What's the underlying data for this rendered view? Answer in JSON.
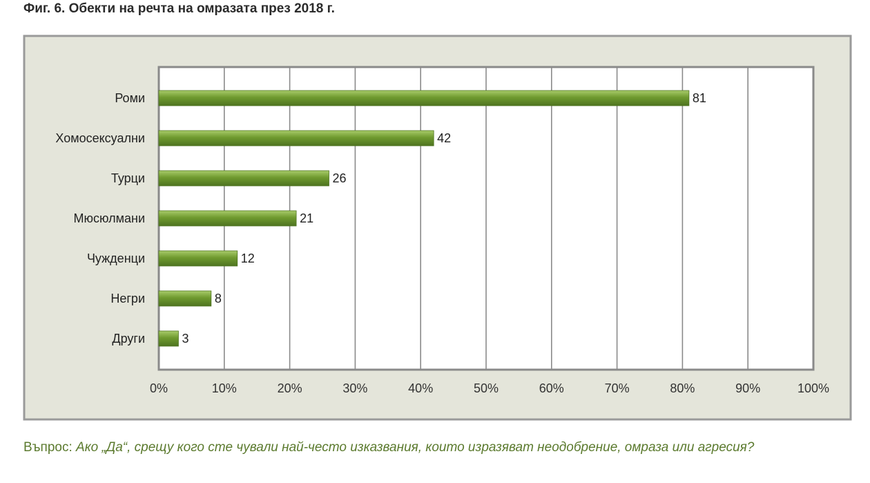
{
  "figure": {
    "title": "Фиг. 6. Обекти на речта на омразата през 2018 г.",
    "question_lead": "Въпрос: ",
    "question_text": "Ако „Да“, срещу кого сте чували най-често изказвания, които изразяват неодобрение, омраза или агресия?"
  },
  "chart_data": {
    "type": "bar",
    "orientation": "horizontal",
    "title": "",
    "xlabel": "",
    "ylabel": "",
    "categories": [
      "Роми",
      "Хомосексуални",
      "Турци",
      "Мюсюлмани",
      "Чужденци",
      "Негри",
      "Други"
    ],
    "values": [
      81,
      42,
      26,
      21,
      12,
      8,
      3
    ],
    "value_labels": [
      "81",
      "42",
      "26",
      "21",
      "12",
      "8",
      "3"
    ],
    "xlim": [
      0,
      100
    ],
    "x_ticks": [
      0,
      10,
      20,
      30,
      40,
      50,
      60,
      70,
      80,
      90,
      100
    ],
    "x_tick_labels": [
      "0%",
      "10%",
      "20%",
      "30%",
      "40%",
      "50%",
      "60%",
      "70%",
      "80%",
      "90%",
      "100%"
    ],
    "grid": true,
    "legend": "none",
    "colors": {
      "bar": "#6f9a2f",
      "bar_light": "#a9cc6a",
      "bar_dark": "#4e7420",
      "outer_panel": "#e4e5da",
      "outer_border": "#9a9a9a",
      "plot_bg": "#ffffff",
      "plot_border": "#8a8a8a",
      "grid": "#8a8a8a"
    }
  }
}
